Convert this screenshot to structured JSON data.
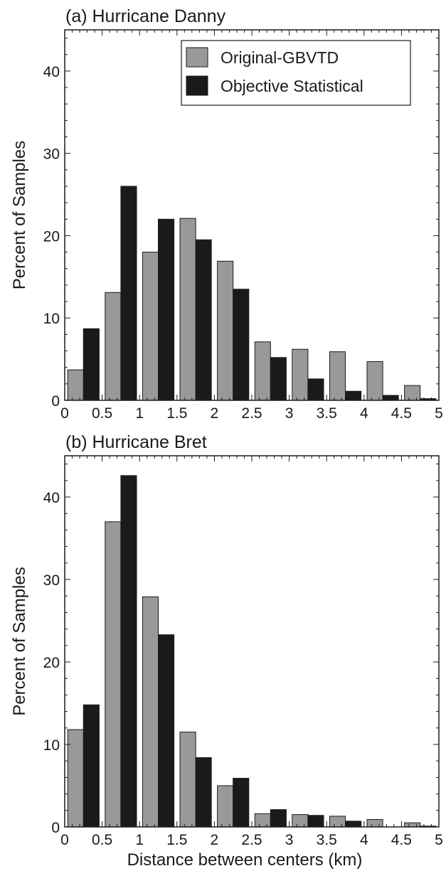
{
  "xlabel": "Distance between centers (km)",
  "legend": [
    {
      "label": "Original-GBVTD",
      "color": "#999999"
    },
    {
      "label": "Objective Statistical",
      "color": "#1a1a1a"
    }
  ],
  "chart_data": [
    {
      "type": "bar",
      "title": "(a) Hurricane Danny",
      "ylabel": "Percent of Samples",
      "xlabel": "",
      "ylim": [
        0,
        45
      ],
      "xlim": [
        0,
        5
      ],
      "x_ticks": [
        "0",
        "0.5",
        "1",
        "1.5",
        "2",
        "2.5",
        "3",
        "3.5",
        "4",
        "4.5",
        "5"
      ],
      "y_ticks": [
        "0",
        "10",
        "20",
        "30",
        "40"
      ],
      "bin_starts": [
        0,
        0.5,
        1,
        1.5,
        2,
        2.5,
        3,
        3.5,
        4,
        4.5
      ],
      "bin_width": 0.5,
      "legend_position": "top-right",
      "series": [
        {
          "name": "Original-GBVTD",
          "color": "#999999",
          "values": [
            3.7,
            13.1,
            18.0,
            22.1,
            16.9,
            7.1,
            6.2,
            5.9,
            4.7,
            1.8
          ]
        },
        {
          "name": "Objective Statistical",
          "color": "#1a1a1a",
          "values": [
            8.7,
            26.0,
            22.0,
            19.5,
            13.5,
            5.2,
            2.6,
            1.1,
            0.6,
            0.2
          ]
        }
      ]
    },
    {
      "type": "bar",
      "title": "(b) Hurricane Bret",
      "ylabel": "Percent of Samples",
      "xlabel": "Distance between centers (km)",
      "ylim": [
        0,
        45
      ],
      "xlim": [
        0,
        5
      ],
      "x_ticks": [
        "0",
        "0.5",
        "1",
        "1.5",
        "2",
        "2.5",
        "3",
        "3.5",
        "4",
        "4.5",
        "5"
      ],
      "y_ticks": [
        "0",
        "10",
        "20",
        "30",
        "40"
      ],
      "bin_starts": [
        0,
        0.5,
        1,
        1.5,
        2,
        2.5,
        3,
        3.5,
        4,
        4.5
      ],
      "bin_width": 0.5,
      "series": [
        {
          "name": "Original-GBVTD",
          "color": "#999999",
          "values": [
            11.8,
            37.0,
            27.9,
            11.5,
            5.0,
            1.6,
            1.5,
            1.3,
            0.9,
            0.5
          ]
        },
        {
          "name": "Objective Statistical",
          "color": "#1a1a1a",
          "values": [
            14.8,
            42.6,
            23.3,
            8.4,
            5.9,
            2.1,
            1.4,
            0.7,
            0.0,
            0.1
          ]
        }
      ]
    }
  ]
}
